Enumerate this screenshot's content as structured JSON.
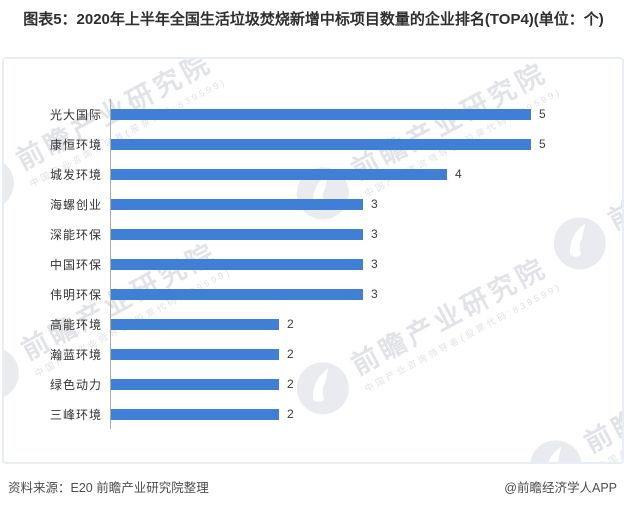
{
  "title": "图表5：2020年上半年全国生活垃圾焚烧新增中标项目数量的企业排名(TOP4)(单位：个)",
  "chart_data": {
    "type": "bar",
    "orientation": "horizontal",
    "title": "图表5：2020年上半年全国生活垃圾焚烧新增中标项目数量的企业排名(TOP4)(单位：个)",
    "unit": "个",
    "categories": [
      "光大国际",
      "康恒环境",
      "城发环境",
      "海螺创业",
      "深能环保",
      "中国环保",
      "伟明环保",
      "高能环境",
      "瀚蓝环境",
      "绿色动力",
      "三峰环境"
    ],
    "values": [
      5,
      5,
      4,
      3,
      3,
      3,
      3,
      2,
      2,
      2,
      2
    ],
    "xlabel": "",
    "ylabel": "",
    "xlim": [
      0,
      6
    ],
    "grid": false,
    "legend": false,
    "value_labels": true
  },
  "watermark": {
    "main": "前瞻产业研究院",
    "sub": "中国产业咨询领导者(股票代码:839599)"
  },
  "footer": {
    "source": "资料来源：E20 前瞻产业研究院整理",
    "credit": "@前瞻经济学人APP"
  },
  "colors": {
    "bar": "#3f7fd6",
    "axis": "#ababab",
    "title_text": "#2f2f2f",
    "label_text": "#333333",
    "panel_border": "#e9edf6",
    "watermark": "#e7e9ed"
  }
}
